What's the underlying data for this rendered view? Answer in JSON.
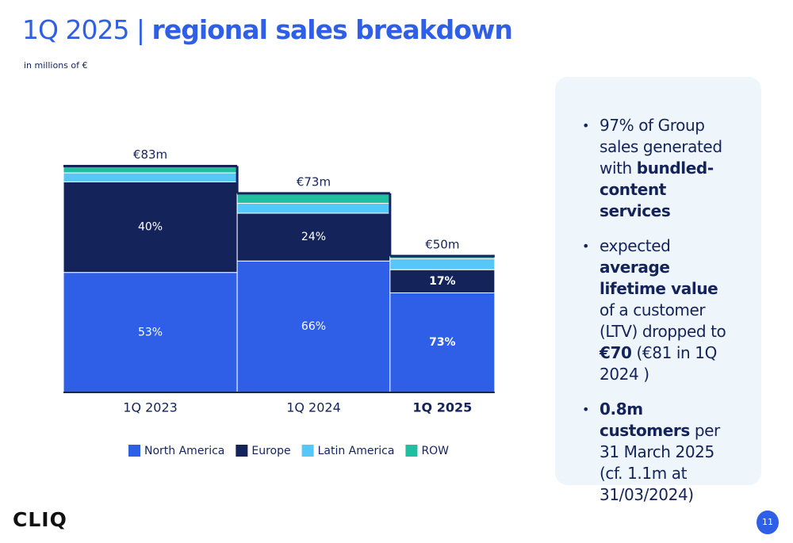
{
  "header": {
    "title_light": "1Q 2025 | ",
    "title_bold": "regional sales breakdown",
    "subtitle": "in millions of €"
  },
  "chart_data": {
    "type": "mekko",
    "categories": [
      "1Q 2023",
      "1Q 2024",
      "1Q 2025"
    ],
    "highlight_index": 2,
    "totals": [
      83,
      73,
      50
    ],
    "total_labels": [
      "€83m",
      "€73m",
      "€50m"
    ],
    "series": [
      {
        "name": "North America",
        "color": "#2f5fe6",
        "values": [
          53,
          66,
          73
        ],
        "value_labels": [
          "53%",
          "66%",
          "73%"
        ]
      },
      {
        "name": "Europe",
        "color": "#14235a",
        "values": [
          40,
          24,
          17
        ],
        "value_labels": [
          "40%",
          "24%",
          "17%"
        ]
      },
      {
        "name": "Latin America",
        "color": "#55c8f7",
        "values": [
          4,
          5,
          8
        ],
        "value_labels": [
          null,
          null,
          null
        ]
      },
      {
        "name": "ROW",
        "color": "#1fbfa0",
        "values": [
          3,
          5,
          2
        ],
        "value_labels": [
          null,
          null,
          null
        ]
      }
    ]
  },
  "panel": {
    "bullets": [
      [
        {
          "text": "97% of Group sales generated with ",
          "strong": false
        },
        {
          "text": "bundled-content services",
          "strong": true
        }
      ],
      [
        {
          "text": "expected ",
          "strong": false
        },
        {
          "text": "average lifetime value",
          "strong": true
        },
        {
          "text": " of a customer (LTV) dropped to ",
          "strong": false
        },
        {
          "text": "€70",
          "strong": true
        },
        {
          "text": " (€81 in 1Q 2024 )",
          "strong": false
        }
      ],
      [
        {
          "text": "0.8m customers",
          "strong": true
        },
        {
          "text": " per 31 March 2025 (cf. 1.1m at 31/03/2024)",
          "strong": false
        }
      ]
    ]
  },
  "footer": {
    "logo": "CLIQ",
    "page": "11"
  }
}
